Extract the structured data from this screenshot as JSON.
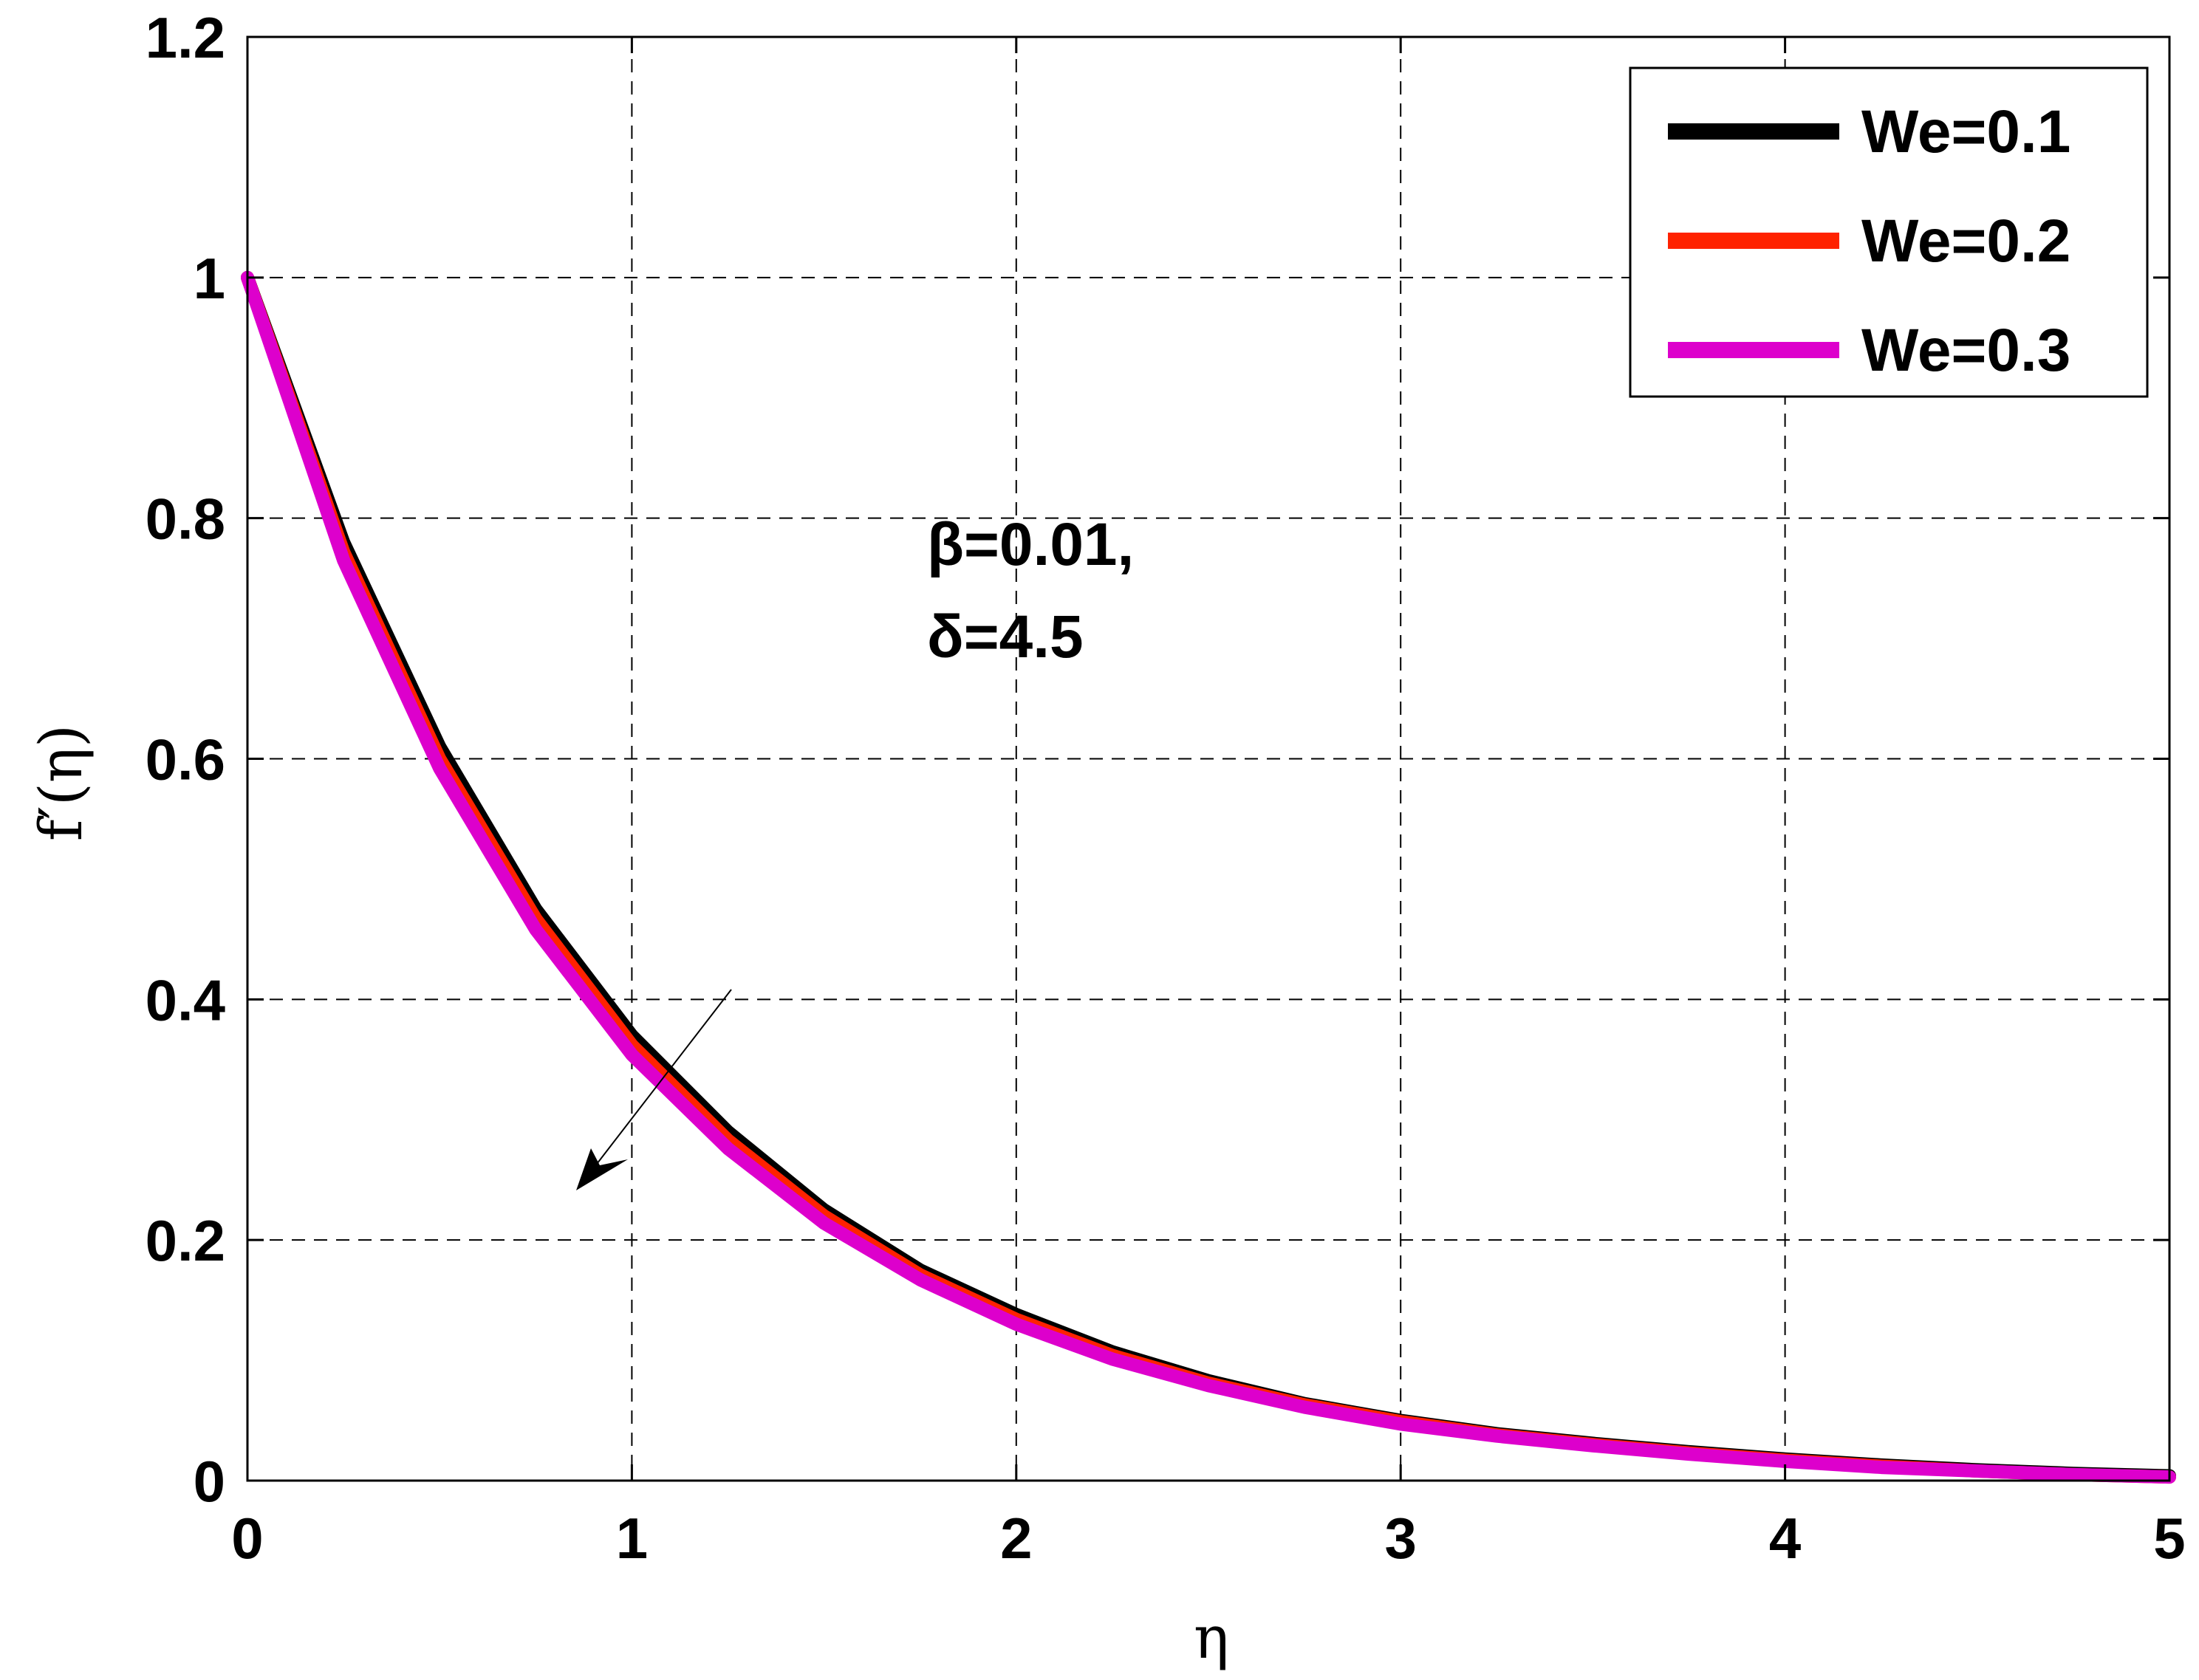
{
  "chart_data": {
    "type": "line",
    "xlabel": "η",
    "ylabel": "f′(η)",
    "xlim": [
      0,
      5
    ],
    "ylim": [
      0,
      1.2
    ],
    "xticks": [
      "0",
      "1",
      "2",
      "3",
      "4",
      "5"
    ],
    "yticks": [
      "0",
      "0.2",
      "0.4",
      "0.6",
      "0.8",
      "1",
      "1.2"
    ],
    "grid": true,
    "legend_position": "top-right",
    "x": [
      0,
      0.25,
      0.5,
      0.75,
      1.0,
      1.25,
      1.5,
      1.75,
      2.0,
      2.25,
      2.5,
      2.75,
      3.0,
      3.25,
      3.5,
      3.75,
      4.0,
      4.25,
      4.5,
      4.75,
      5.0
    ],
    "series": [
      {
        "name": "We=0.1",
        "color": "#000000",
        "values": [
          1.0,
          0.78,
          0.61,
          0.475,
          0.37,
          0.29,
          0.225,
          0.175,
          0.138,
          0.107,
          0.083,
          0.064,
          0.05,
          0.039,
          0.031,
          0.024,
          0.018,
          0.013,
          0.009,
          0.006,
          0.004
        ]
      },
      {
        "name": "We=0.2",
        "color": "#ff2200",
        "values": [
          1.0,
          0.772,
          0.6,
          0.467,
          0.362,
          0.283,
          0.22,
          0.171,
          0.134,
          0.104,
          0.081,
          0.063,
          0.049,
          0.038,
          0.03,
          0.023,
          0.017,
          0.012,
          0.008,
          0.005,
          0.003
        ]
      },
      {
        "name": "We=0.3",
        "color": "#dd00cc",
        "values": [
          1.0,
          0.765,
          0.592,
          0.458,
          0.354,
          0.276,
          0.214,
          0.167,
          0.13,
          0.101,
          0.079,
          0.061,
          0.047,
          0.037,
          0.029,
          0.022,
          0.016,
          0.011,
          0.008,
          0.005,
          0.003
        ]
      }
    ],
    "annotations": {
      "line1": "β=0.01,",
      "line2": "δ=4.5"
    }
  }
}
